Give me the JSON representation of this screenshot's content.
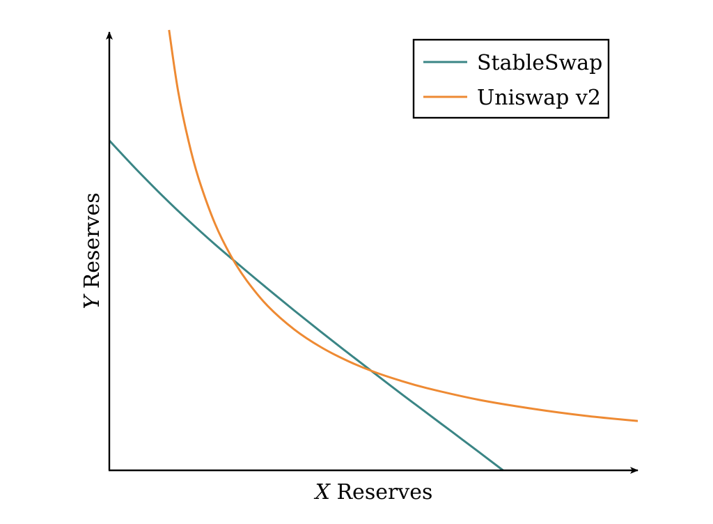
{
  "chart_data": {
    "type": "line",
    "title": "",
    "xlabel": {
      "var": "X",
      "text": " Reserves"
    },
    "ylabel": {
      "var": "Y",
      "text": " Reserves"
    },
    "xlim": [
      0,
      1
    ],
    "ylim": [
      0,
      1
    ],
    "ticks": false,
    "grid": false,
    "legend_position": "top-right",
    "series": [
      {
        "name": "StableSwap",
        "color": "#3a8585",
        "x": [
          0.0,
          0.05,
          0.1,
          0.15,
          0.2,
          0.25,
          0.3,
          0.35,
          0.4,
          0.45,
          0.5,
          0.55,
          0.6,
          0.65,
          0.7,
          0.745
        ],
        "y": [
          0.749,
          0.685,
          0.624,
          0.567,
          0.513,
          0.462,
          0.412,
          0.363,
          0.315,
          0.268,
          0.222,
          0.176,
          0.131,
          0.086,
          0.041,
          0.0
        ]
      },
      {
        "name": "Uniswap v2",
        "color": "#ee8a33",
        "x": [
          0.113,
          0.13,
          0.15,
          0.17,
          0.2,
          0.23,
          0.26,
          0.3,
          0.35,
          0.4,
          0.45,
          0.5,
          0.55,
          0.6,
          0.7,
          0.8,
          0.9,
          1.0
        ],
        "y": [
          1.0,
          0.862,
          0.747,
          0.659,
          0.56,
          0.487,
          0.431,
          0.373,
          0.32,
          0.28,
          0.249,
          0.224,
          0.204,
          0.187,
          0.16,
          0.14,
          0.124,
          0.112
        ]
      }
    ]
  }
}
